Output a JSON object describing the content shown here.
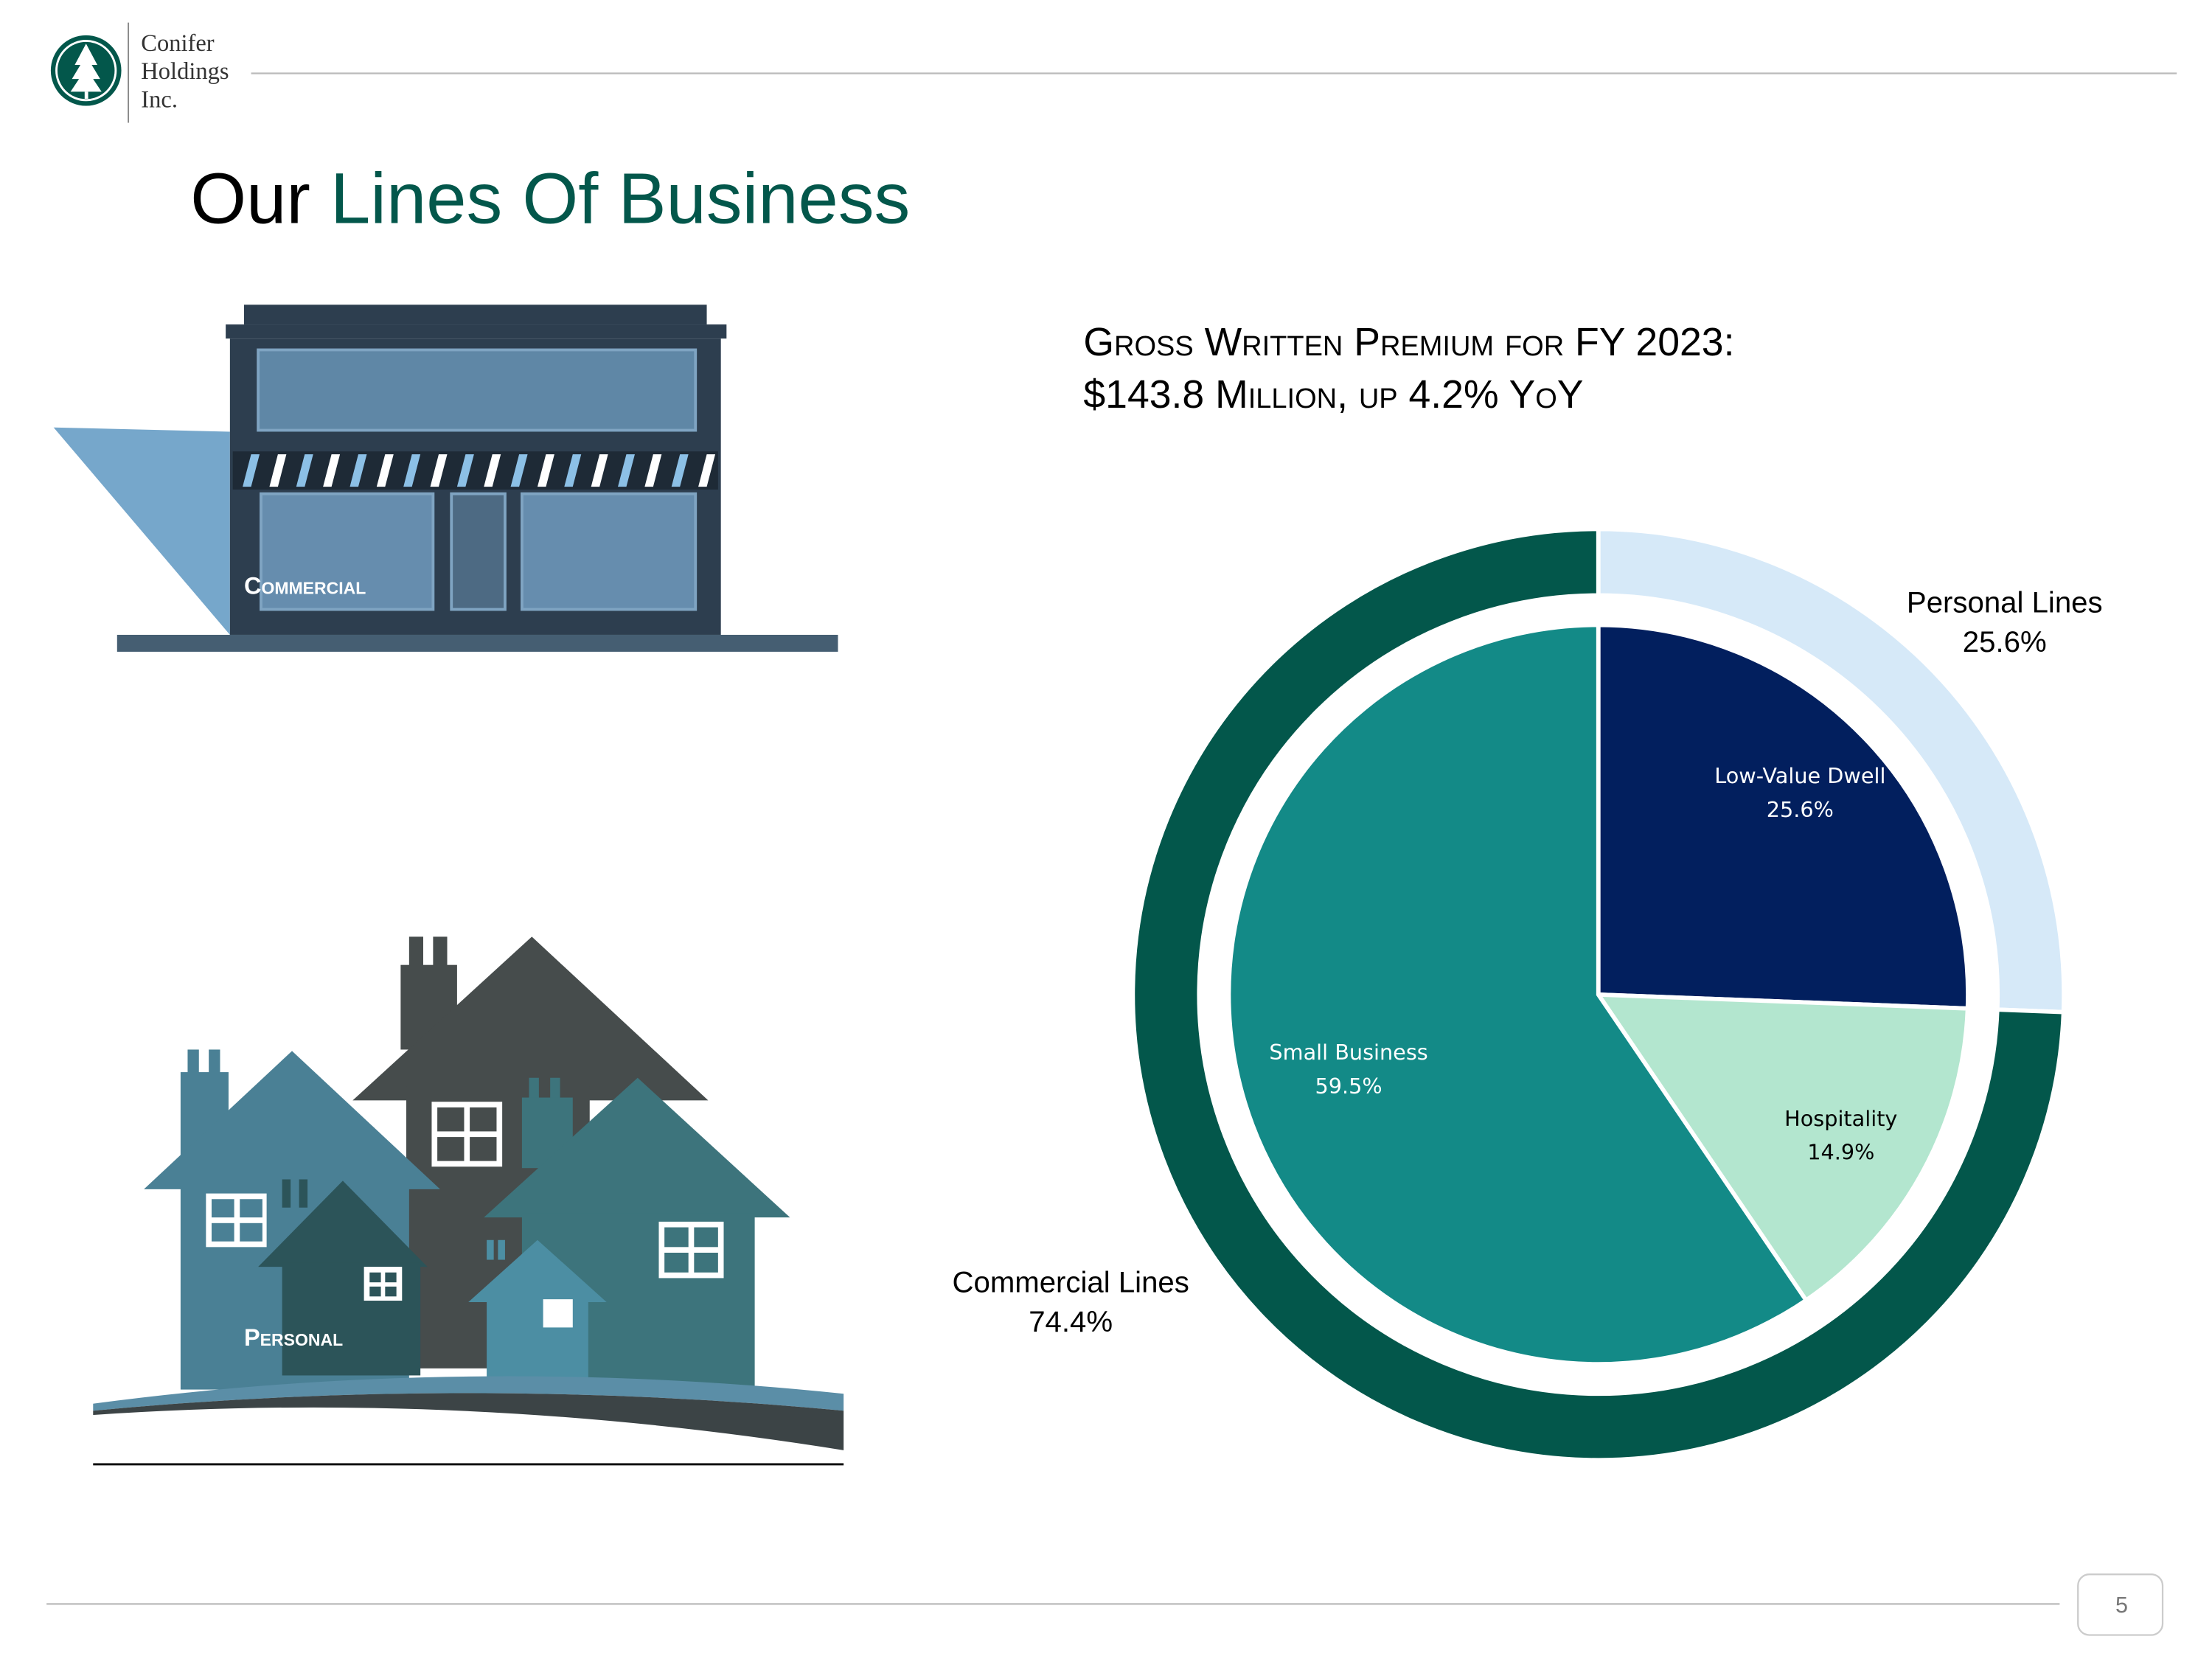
{
  "header": {
    "logo_lines": [
      "Conifer",
      "Holdings",
      "Inc."
    ]
  },
  "slide_title": {
    "lead": "Our",
    "highlight": "Lines Of Business"
  },
  "illustrations": {
    "commercial": "Commercial",
    "personal": "Personal"
  },
  "chart_data": {
    "type": "pie",
    "title": [
      "Gross Written Premium for FY 2023:",
      "$143.8 Million, up 4.2% YoY"
    ],
    "outer": {
      "categories": [
        "Personal Lines",
        "Commercial Lines"
      ],
      "values": [
        25.6,
        74.4
      ],
      "value_labels": [
        "25.6%",
        "74.4%"
      ],
      "colors": [
        "#d6e9f8",
        "#03574b"
      ]
    },
    "inner": {
      "categories": [
        "Low-Value Dwell",
        "Hospitality",
        "Small Business"
      ],
      "values": [
        25.6,
        14.9,
        59.5
      ],
      "value_labels": [
        "25.6%",
        "14.9%",
        "59.5%"
      ],
      "colors": [
        "#021f5e",
        "#b3e6cf",
        "#138a87"
      ]
    }
  },
  "page_number": 5
}
